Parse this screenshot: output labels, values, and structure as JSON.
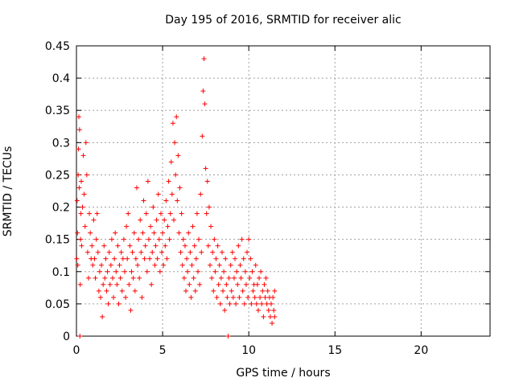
{
  "chart_data": {
    "type": "scatter",
    "title": "Day 195 of 2016, SRMTID for receiver alic",
    "xlabel": "GPS time / hours",
    "ylabel": "SRMTID / TECUs",
    "xlim": [
      0,
      24
    ],
    "ylim": [
      0,
      0.45
    ],
    "xticks": [
      0,
      5,
      10,
      15,
      20
    ],
    "yticks": [
      0,
      0.05,
      0.1,
      0.15,
      0.2,
      0.25,
      0.3,
      0.35,
      0.4,
      0.45
    ],
    "xtick_labels": [
      "0",
      "5",
      "10",
      "15",
      "20"
    ],
    "ytick_labels": [
      "0",
      "0.05",
      "0.1",
      "0.15",
      "0.2",
      "0.25",
      "0.3",
      "0.35",
      "0.4",
      "0.45"
    ],
    "grid": true,
    "marker": "+",
    "colors": {
      "points": "#ff0000",
      "grid": "#a0a0a0",
      "axes": "#000000"
    },
    "series": [
      {
        "name": "SRMTID",
        "points": [
          [
            0.02,
            0.12
          ],
          [
            0.04,
            0.21
          ],
          [
            0.06,
            0.16
          ],
          [
            0.08,
            0.11
          ],
          [
            0.1,
            0.25
          ],
          [
            0.12,
            0.29
          ],
          [
            0.14,
            0.34
          ],
          [
            0.16,
            0.23
          ],
          [
            0.18,
            0.32
          ],
          [
            0.2,
            0.0
          ],
          [
            0.22,
            0.08
          ],
          [
            0.24,
            0.15
          ],
          [
            0.26,
            0.19
          ],
          [
            0.28,
            0.24
          ],
          [
            0.3,
            0.14
          ],
          [
            0.35,
            0.2
          ],
          [
            0.4,
            0.28
          ],
          [
            0.45,
            0.22
          ],
          [
            0.5,
            0.17
          ],
          [
            0.55,
            0.3
          ],
          [
            0.6,
            0.25
          ],
          [
            0.65,
            0.13
          ],
          [
            0.7,
            0.09
          ],
          [
            0.75,
            0.19
          ],
          [
            0.8,
            0.16
          ],
          [
            0.85,
            0.12
          ],
          [
            0.9,
            0.14
          ],
          [
            0.95,
            0.11
          ],
          [
            1.0,
            0.18
          ],
          [
            1.05,
            0.12
          ],
          [
            1.1,
            0.09
          ],
          [
            1.15,
            0.15
          ],
          [
            1.2,
            0.19
          ],
          [
            1.25,
            0.13
          ],
          [
            1.3,
            0.07
          ],
          [
            1.35,
            0.1
          ],
          [
            1.4,
            0.06
          ],
          [
            1.45,
            0.11
          ],
          [
            1.5,
            0.03
          ],
          [
            1.55,
            0.08
          ],
          [
            1.6,
            0.14
          ],
          [
            1.65,
            0.09
          ],
          [
            1.7,
            0.12
          ],
          [
            1.75,
            0.07
          ],
          [
            1.8,
            0.1
          ],
          [
            1.85,
            0.05
          ],
          [
            1.9,
            0.13
          ],
          [
            1.95,
            0.08
          ],
          [
            2.0,
            0.11
          ],
          [
            2.05,
            0.15
          ],
          [
            2.1,
            0.09
          ],
          [
            2.15,
            0.06
          ],
          [
            2.2,
            0.12
          ],
          [
            2.25,
            0.16
          ],
          [
            2.3,
            0.1
          ],
          [
            2.35,
            0.08
          ],
          [
            2.4,
            0.14
          ],
          [
            2.45,
            0.05
          ],
          [
            2.5,
            0.11
          ],
          [
            2.55,
            0.09
          ],
          [
            2.6,
            0.13
          ],
          [
            2.65,
            0.07
          ],
          [
            2.7,
            0.12
          ],
          [
            2.75,
            0.15
          ],
          [
            2.8,
            0.1
          ],
          [
            2.85,
            0.06
          ],
          [
            2.9,
            0.17
          ],
          [
            2.95,
            0.12
          ],
          [
            3.0,
            0.19
          ],
          [
            3.05,
            0.08
          ],
          [
            3.1,
            0.14
          ],
          [
            3.15,
            0.04
          ],
          [
            3.2,
            0.1
          ],
          [
            3.25,
            0.13
          ],
          [
            3.3,
            0.09
          ],
          [
            3.35,
            0.16
          ],
          [
            3.4,
            0.07
          ],
          [
            3.45,
            0.12
          ],
          [
            3.5,
            0.23
          ],
          [
            3.55,
            0.11
          ],
          [
            3.6,
            0.15
          ],
          [
            3.65,
            0.09
          ],
          [
            3.7,
            0.18
          ],
          [
            3.75,
            0.13
          ],
          [
            3.8,
            0.06
          ],
          [
            3.85,
            0.16
          ],
          [
            3.9,
            0.21
          ],
          [
            3.95,
            0.12
          ],
          [
            4.0,
            0.14
          ],
          [
            4.05,
            0.19
          ],
          [
            4.1,
            0.1
          ],
          [
            4.15,
            0.24
          ],
          [
            4.2,
            0.15
          ],
          [
            4.25,
            0.12
          ],
          [
            4.3,
            0.17
          ],
          [
            4.35,
            0.08
          ],
          [
            4.4,
            0.13
          ],
          [
            4.45,
            0.2
          ],
          [
            4.5,
            0.16
          ],
          [
            4.55,
            0.11
          ],
          [
            4.6,
            0.14
          ],
          [
            4.65,
            0.18
          ],
          [
            4.7,
            0.12
          ],
          [
            4.75,
            0.22
          ],
          [
            4.8,
            0.15
          ],
          [
            4.85,
            0.1
          ],
          [
            4.9,
            0.19
          ],
          [
            4.95,
            0.13
          ],
          [
            5.0,
            0.16
          ],
          [
            5.05,
            0.11
          ],
          [
            5.1,
            0.18
          ],
          [
            5.15,
            0.14
          ],
          [
            5.2,
            0.21
          ],
          [
            5.25,
            0.12
          ],
          [
            5.3,
            0.17
          ],
          [
            5.35,
            0.24
          ],
          [
            5.4,
            0.15
          ],
          [
            5.45,
            0.19
          ],
          [
            5.5,
            0.27
          ],
          [
            5.55,
            0.22
          ],
          [
            5.6,
            0.33
          ],
          [
            5.65,
            0.18
          ],
          [
            5.7,
            0.3
          ],
          [
            5.75,
            0.25
          ],
          [
            5.8,
            0.34
          ],
          [
            5.85,
            0.21
          ],
          [
            5.9,
            0.28
          ],
          [
            5.95,
            0.16
          ],
          [
            6.0,
            0.23
          ],
          [
            6.05,
            0.13
          ],
          [
            6.1,
            0.19
          ],
          [
            6.15,
            0.11
          ],
          [
            6.2,
            0.15
          ],
          [
            6.25,
            0.09
          ],
          [
            6.3,
            0.14
          ],
          [
            6.35,
            0.07
          ],
          [
            6.4,
            0.12
          ],
          [
            6.45,
            0.1
          ],
          [
            6.5,
            0.16
          ],
          [
            6.55,
            0.08
          ],
          [
            6.6,
            0.13
          ],
          [
            6.65,
            0.06
          ],
          [
            6.7,
            0.11
          ],
          [
            6.75,
            0.17
          ],
          [
            6.8,
            0.09
          ],
          [
            6.85,
            0.14
          ],
          [
            6.9,
            0.07
          ],
          [
            6.95,
            0.12
          ],
          [
            7.0,
            0.19
          ],
          [
            7.05,
            0.1
          ],
          [
            7.1,
            0.15
          ],
          [
            7.15,
            0.08
          ],
          [
            7.2,
            0.22
          ],
          [
            7.25,
            0.13
          ],
          [
            7.3,
            0.31
          ],
          [
            7.35,
            0.38
          ],
          [
            7.4,
            0.43
          ],
          [
            7.45,
            0.36
          ],
          [
            7.5,
            0.26
          ],
          [
            7.55,
            0.19
          ],
          [
            7.6,
            0.24
          ],
          [
            7.65,
            0.14
          ],
          [
            7.7,
            0.2
          ],
          [
            7.75,
            0.11
          ],
          [
            7.8,
            0.17
          ],
          [
            7.85,
            0.09
          ],
          [
            7.9,
            0.13
          ],
          [
            7.95,
            0.07
          ],
          [
            8.0,
            0.15
          ],
          [
            8.05,
            0.1
          ],
          [
            8.1,
            0.12
          ],
          [
            8.15,
            0.06
          ],
          [
            8.2,
            0.14
          ],
          [
            8.25,
            0.08
          ],
          [
            8.3,
            0.11
          ],
          [
            8.35,
            0.05
          ],
          [
            8.4,
            0.09
          ],
          [
            8.45,
            0.13
          ],
          [
            8.5,
            0.07
          ],
          [
            8.55,
            0.1
          ],
          [
            8.6,
            0.04
          ],
          [
            8.65,
            0.12
          ],
          [
            8.7,
            0.08
          ],
          [
            8.75,
            0.06
          ],
          [
            8.8,
            0.0
          ],
          [
            8.85,
            0.09
          ],
          [
            8.9,
            0.05
          ],
          [
            8.95,
            0.11
          ],
          [
            9.0,
            0.07
          ],
          [
            9.05,
            0.13
          ],
          [
            9.1,
            0.06
          ],
          [
            9.15,
            0.09
          ],
          [
            9.2,
            0.12
          ],
          [
            9.25,
            0.05
          ],
          [
            9.3,
            0.1
          ],
          [
            9.35,
            0.08
          ],
          [
            9.4,
            0.14
          ],
          [
            9.45,
            0.06
          ],
          [
            9.5,
            0.11
          ],
          [
            9.55,
            0.09
          ],
          [
            9.6,
            0.15
          ],
          [
            9.65,
            0.07
          ],
          [
            9.7,
            0.12
          ],
          [
            9.75,
            0.05
          ],
          [
            9.8,
            0.1
          ],
          [
            9.85,
            0.08
          ],
          [
            9.9,
            0.13
          ],
          [
            9.95,
            0.06
          ],
          [
            10.0,
            0.15
          ],
          [
            10.05,
            0.09
          ],
          [
            10.1,
            0.12
          ],
          [
            10.15,
            0.05
          ],
          [
            10.2,
            0.1
          ],
          [
            10.25,
            0.07
          ],
          [
            10.3,
            0.08
          ],
          [
            10.35,
            0.06
          ],
          [
            10.4,
            0.11
          ],
          [
            10.45,
            0.05
          ],
          [
            10.5,
            0.08
          ],
          [
            10.55,
            0.04
          ],
          [
            10.6,
            0.09
          ],
          [
            10.65,
            0.06
          ],
          [
            10.7,
            0.1
          ],
          [
            10.75,
            0.05
          ],
          [
            10.8,
            0.07
          ],
          [
            10.85,
            0.03
          ],
          [
            10.9,
            0.08
          ],
          [
            10.95,
            0.06
          ],
          [
            11.0,
            0.09
          ],
          [
            11.05,
            0.05
          ],
          [
            11.1,
            0.07
          ],
          [
            11.15,
            0.04
          ],
          [
            11.2,
            0.06
          ],
          [
            11.25,
            0.03
          ],
          [
            11.3,
            0.05
          ],
          [
            11.35,
            0.02
          ],
          [
            11.4,
            0.06
          ],
          [
            11.45,
            0.04
          ],
          [
            11.5,
            0.07
          ],
          [
            11.5,
            0.03
          ]
        ]
      }
    ]
  }
}
